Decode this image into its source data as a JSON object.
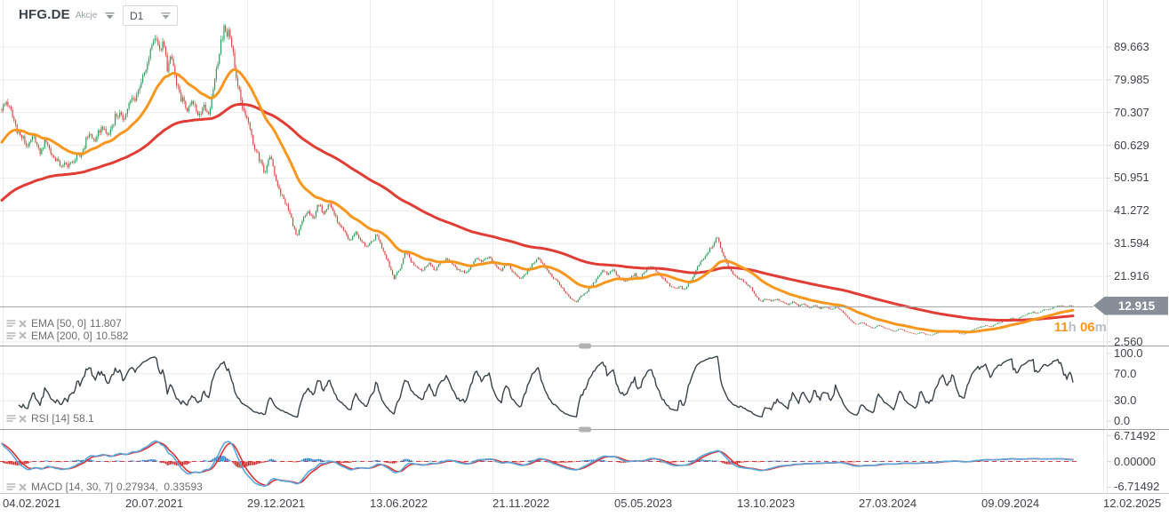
{
  "header": {
    "symbol": "HFG.DE",
    "market_label": "Akcje",
    "timeframe": "D1"
  },
  "overlays": {
    "ema_fast": {
      "label": "EMA [50, 0]",
      "value": "11.807"
    },
    "ema_slow": {
      "label": "EMA [200, 0]",
      "value": "10.582"
    },
    "rsi": {
      "label": "RSI [14]",
      "value": "58.1"
    },
    "macd": {
      "label": "MACD [14, 30, 7]",
      "value": "0.27934,  0.33593"
    }
  },
  "price_scale": {
    "current_price_label": "12.915",
    "countdown": {
      "hours": "11",
      "hours_unit": "h",
      "minutes": "06",
      "minutes_unit": "m"
    }
  },
  "chart_data": {
    "type": "candlestick",
    "symbol": "HFG.DE",
    "timeframe": "D1",
    "x_tick_labels": [
      "04.02.2021",
      "20.07.2021",
      "29.12.2021",
      "13.06.2022",
      "21.11.2022",
      "05.05.2023",
      "13.10.2023",
      "27.03.2024",
      "09.09.2024",
      "12.02.2025"
    ],
    "price_ticks": [
      89.663,
      79.985,
      70.307,
      60.629,
      50.951,
      41.272,
      31.594,
      21.916,
      2.56
    ],
    "price_tick_labels": [
      "89.663",
      "79.985",
      "70.307",
      "60.629",
      "50.951",
      "41.272",
      "31.594",
      "21.916",
      "2.560"
    ],
    "current_price": 12.915,
    "ema_fast": {
      "period": 50,
      "shift": 0,
      "last_value": 11.807
    },
    "ema_slow": {
      "period": 200,
      "shift": 0,
      "last_value": 10.582
    },
    "rsi_panel": {
      "period": 14,
      "last_value": 58.1,
      "ticks": [
        100,
        70,
        30,
        0
      ],
      "tick_labels": [
        "100.0",
        "70.0",
        "30.0",
        "0.0"
      ],
      "gridlines": [
        70,
        30
      ]
    },
    "macd_panel": {
      "params": [
        14,
        30,
        7
      ],
      "last_values": [
        0.27934,
        0.33593
      ],
      "ticks": [
        6.71492,
        0,
        -6.71492
      ],
      "tick_labels": [
        "6.71492",
        "0.00000",
        "-6.71492"
      ]
    },
    "n_candles": 700,
    "close_anchors": [
      [
        0,
        70
      ],
      [
        8,
        74
      ],
      [
        15,
        68
      ],
      [
        22,
        64
      ],
      [
        30,
        60.5
      ],
      [
        38,
        63
      ],
      [
        45,
        58.5
      ],
      [
        52,
        62
      ],
      [
        60,
        57
      ],
      [
        68,
        55
      ],
      [
        75,
        54.5
      ],
      [
        82,
        56
      ],
      [
        90,
        57.5
      ],
      [
        100,
        64
      ],
      [
        108,
        62
      ],
      [
        115,
        66.5
      ],
      [
        122,
        63
      ],
      [
        130,
        70
      ],
      [
        138,
        68.5
      ],
      [
        146,
        73
      ],
      [
        152,
        75
      ],
      [
        158,
        78.5
      ],
      [
        164,
        83
      ],
      [
        168,
        87
      ],
      [
        172,
        91
      ],
      [
        176,
        93.5
      ],
      [
        180,
        88
      ],
      [
        184,
        90.5
      ],
      [
        188,
        84
      ],
      [
        193,
        86.5
      ],
      [
        198,
        79
      ],
      [
        204,
        74.5
      ],
      [
        210,
        71
      ],
      [
        216,
        73.5
      ],
      [
        222,
        69.8
      ],
      [
        228,
        72
      ],
      [
        234,
        70
      ],
      [
        239,
        76
      ],
      [
        244,
        84
      ],
      [
        249,
        92
      ],
      [
        252,
        96.5
      ],
      [
        255,
        92
      ],
      [
        258,
        95.5
      ],
      [
        262,
        88
      ],
      [
        266,
        80
      ],
      [
        271,
        74
      ],
      [
        276,
        70
      ],
      [
        281,
        66
      ],
      [
        286,
        60
      ],
      [
        292,
        56
      ],
      [
        298,
        53
      ],
      [
        304,
        57.5
      ],
      [
        310,
        51
      ],
      [
        316,
        46
      ],
      [
        322,
        43.5
      ],
      [
        328,
        38.5
      ],
      [
        334,
        33.5
      ],
      [
        340,
        38
      ],
      [
        346,
        41.5
      ],
      [
        352,
        38.5
      ],
      [
        358,
        43.5
      ],
      [
        364,
        40.5
      ],
      [
        370,
        44
      ],
      [
        376,
        40
      ],
      [
        382,
        37
      ],
      [
        388,
        34.5
      ],
      [
        394,
        32.5
      ],
      [
        400,
        35
      ],
      [
        406,
        32.5
      ],
      [
        412,
        30.5
      ],
      [
        418,
        32
      ],
      [
        424,
        34
      ],
      [
        430,
        30.5
      ],
      [
        436,
        26.5
      ],
      [
        443,
        21.5
      ],
      [
        450,
        24
      ],
      [
        456,
        29.5
      ],
      [
        462,
        26.5
      ],
      [
        468,
        25
      ],
      [
        475,
        23.5
      ],
      [
        482,
        26
      ],
      [
        488,
        23.8
      ],
      [
        495,
        25.5
      ],
      [
        502,
        27.2
      ],
      [
        509,
        25.6
      ],
      [
        516,
        23.8
      ],
      [
        523,
        22.8
      ],
      [
        530,
        24.6
      ],
      [
        537,
        27.6
      ],
      [
        543,
        26.2
      ],
      [
        550,
        27.8
      ],
      [
        557,
        25.2
      ],
      [
        564,
        23.8
      ],
      [
        571,
        25.6
      ],
      [
        578,
        22.8
      ],
      [
        585,
        21.4
      ],
      [
        592,
        22.6
      ],
      [
        599,
        25.8
      ],
      [
        606,
        27.2
      ],
      [
        613,
        24.6
      ],
      [
        620,
        22.2
      ],
      [
        627,
        20.4
      ],
      [
        634,
        17.8
      ],
      [
        641,
        15.4
      ],
      [
        648,
        14.2
      ],
      [
        654,
        16.2
      ],
      [
        660,
        17.4
      ],
      [
        666,
        19.2
      ],
      [
        672,
        21.8
      ],
      [
        678,
        23.6
      ],
      [
        684,
        22.6
      ],
      [
        690,
        23.8
      ],
      [
        696,
        21.6
      ],
      [
        702,
        20.2
      ],
      [
        708,
        21.4
      ],
      [
        714,
        22.4
      ],
      [
        720,
        21.2
      ],
      [
        726,
        23.6
      ],
      [
        731,
        25.2
      ],
      [
        736,
        23.8
      ],
      [
        742,
        22.4
      ],
      [
        748,
        20.6
      ],
      [
        754,
        19
      ],
      [
        760,
        18.2
      ],
      [
        765,
        19
      ],
      [
        770,
        18
      ],
      [
        776,
        20
      ],
      [
        782,
        23.2
      ],
      [
        788,
        26.4
      ],
      [
        794,
        28.2
      ],
      [
        800,
        30.6
      ],
      [
        806,
        33.4
      ],
      [
        810,
        30.8
      ],
      [
        815,
        27.4
      ],
      [
        820,
        24.4
      ],
      [
        826,
        22.2
      ],
      [
        832,
        21
      ],
      [
        838,
        20.2
      ],
      [
        844,
        18.8
      ],
      [
        850,
        16.2
      ],
      [
        856,
        14.4
      ],
      [
        862,
        15.4
      ],
      [
        868,
        14.6
      ],
      [
        874,
        15.2
      ],
      [
        880,
        14.2
      ],
      [
        886,
        13.6
      ],
      [
        892,
        14.3
      ],
      [
        898,
        13.2
      ],
      [
        904,
        13.8
      ],
      [
        910,
        12.6
      ],
      [
        916,
        13.4
      ],
      [
        922,
        12.4
      ],
      [
        928,
        13
      ],
      [
        934,
        12.2
      ],
      [
        940,
        12.8
      ],
      [
        946,
        12
      ],
      [
        952,
        10.2
      ],
      [
        958,
        8.6
      ],
      [
        964,
        7.6
      ],
      [
        970,
        8.4
      ],
      [
        976,
        7.2
      ],
      [
        982,
        6.6
      ],
      [
        988,
        7.4
      ],
      [
        994,
        6.8
      ],
      [
        1000,
        6.2
      ],
      [
        1006,
        5.6
      ],
      [
        1012,
        6.4
      ],
      [
        1018,
        5.8
      ],
      [
        1024,
        5.2
      ],
      [
        1030,
        4.9
      ],
      [
        1036,
        5.4
      ],
      [
        1042,
        4.7
      ],
      [
        1048,
        4.6
      ],
      [
        1054,
        5.2
      ],
      [
        1060,
        5.8
      ],
      [
        1066,
        5.4
      ],
      [
        1072,
        6
      ],
      [
        1078,
        5.2
      ],
      [
        1084,
        4.8
      ],
      [
        1090,
        5.6
      ],
      [
        1096,
        6.4
      ],
      [
        1102,
        6.9
      ],
      [
        1108,
        7.4
      ],
      [
        1114,
        7
      ],
      [
        1120,
        7.8
      ],
      [
        1126,
        8.4
      ],
      [
        1132,
        9
      ],
      [
        1138,
        9.6
      ],
      [
        1144,
        9.2
      ],
      [
        1150,
        10.2
      ],
      [
        1156,
        10.8
      ],
      [
        1162,
        11.4
      ],
      [
        1168,
        11
      ],
      [
        1174,
        12
      ],
      [
        1180,
        12.2
      ],
      [
        1186,
        12.8
      ],
      [
        1192,
        13.4
      ],
      [
        1198,
        12.8
      ],
      [
        1203,
        13.2
      ],
      [
        1207,
        12.915
      ]
    ],
    "colors": {
      "candle_up": "#239b54",
      "candle_down": "#d8443c",
      "ema_fast": "#f8961d",
      "ema_slow": "#e23d35",
      "rsi_line": "#39434c",
      "macd_line": "#58a8e0",
      "macd_signal": "#df3232",
      "macd_hist_pos": "#1d79c8",
      "macd_hist_neg": "#cf1f1f",
      "macd_zero": "#e04040",
      "grid": "#ececec",
      "separator": "#9b9fa3",
      "current_price_line": "#9da3a8",
      "badge_bg": "#878e98",
      "countdown_orange": "#f8961d",
      "countdown_gray": "#b9bfc6"
    }
  }
}
